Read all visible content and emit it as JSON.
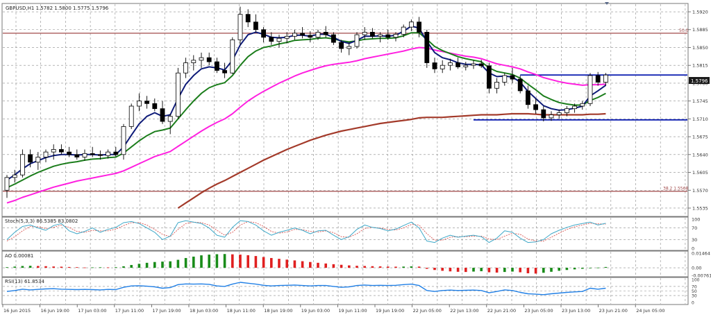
{
  "main": {
    "header": "GBPUSD,H1  1.5782 1.5800 1.5775 1.5796",
    "price_ticks": [
      "1.5920",
      "1.5885",
      "1.5850",
      "1.5815",
      "1.5780",
      "1.5745",
      "1.5710",
      "1.5675",
      "1.5640",
      "1.5605",
      "1.5570",
      "1.5535"
    ],
    "current_price": "1.5796",
    "fib_upper": "50.0",
    "fib_lower": "38.2 1.5568"
  },
  "stoch": {
    "header": "Stoch(5,3,3) 86.5385 83.0802",
    "ticks": [
      "100",
      "70",
      "30",
      "0"
    ]
  },
  "ao": {
    "header": "AO 0.00081",
    "ticks": [
      "0.01464",
      "0.00",
      "-0.00761"
    ]
  },
  "rsi": {
    "header": "RSI(13) 61.8534",
    "ticks": [
      "100",
      "70",
      "50",
      "30",
      "0"
    ]
  },
  "time_axis": [
    "16 Jun 2015",
    "16 Jun 19:00",
    "17 Jun 03:00",
    "17 Jun 11:00",
    "17 Jun 19:00",
    "18 Jun 03:00",
    "18 Jun 11:00",
    "18 Jun 19:00",
    "19 Jun 03:00",
    "19 Jun 11:00",
    "19 Jun 19:00",
    "22 Jun 05:00",
    "22 Jun 13:00",
    "22 Jun 21:00",
    "23 Jun 05:00",
    "23 Jun 13:00",
    "23 Jun 21:00",
    "24 Jun 05:00"
  ],
  "colors": {
    "grid": "#8a8a8a",
    "ma_blue": "#0d1a78",
    "ma_green": "#1b7d1b",
    "ma_magenta": "#ff1fe0",
    "ma_brown": "#a33a2a",
    "fib_line": "#a04848",
    "hline_blue": "#0a1bb0",
    "stoch_main": "#3ea8c8",
    "stoch_signal": "#d9534f",
    "ao_up": "#1a8c1a",
    "ao_down": "#e02020",
    "rsi_line": "#1f7fe6",
    "axis_text": "#333333"
  },
  "chart_data": [
    {
      "type": "candlestick",
      "title": "GBPUSD,H1",
      "ylim": [
        1.552,
        1.5935
      ],
      "ohlc": [
        [
          1.557,
          1.56,
          1.5555,
          1.5595
        ],
        [
          1.5595,
          1.561,
          1.5585,
          1.56
        ],
        [
          1.56,
          1.565,
          1.5595,
          1.564
        ],
        [
          1.564,
          1.565,
          1.5615,
          1.5625
        ],
        [
          1.5625,
          1.5645,
          1.561,
          1.5635
        ],
        [
          1.5635,
          1.565,
          1.5625,
          1.5645
        ],
        [
          1.5645,
          1.566,
          1.563,
          1.565
        ],
        [
          1.565,
          1.566,
          1.564,
          1.5645
        ],
        [
          1.5645,
          1.5655,
          1.5635,
          1.564
        ],
        [
          1.564,
          1.565,
          1.563,
          1.5635
        ],
        [
          1.5635,
          1.565,
          1.5628,
          1.5642
        ],
        [
          1.5642,
          1.5655,
          1.5635,
          1.564
        ],
        [
          1.564,
          1.5648,
          1.563,
          1.5638
        ],
        [
          1.5638,
          1.565,
          1.5632,
          1.5645
        ],
        [
          1.5645,
          1.5655,
          1.5636,
          1.564
        ],
        [
          1.564,
          1.57,
          1.563,
          1.5695
        ],
        [
          1.5695,
          1.574,
          1.569,
          1.5735
        ],
        [
          1.5735,
          1.576,
          1.5725,
          1.5745
        ],
        [
          1.5745,
          1.5755,
          1.573,
          1.574
        ],
        [
          1.574,
          1.575,
          1.5725,
          1.573
        ],
        [
          1.573,
          1.5745,
          1.57,
          1.5705
        ],
        [
          1.5705,
          1.572,
          1.568,
          1.5715
        ],
        [
          1.5715,
          1.581,
          1.571,
          1.58
        ],
        [
          1.58,
          1.583,
          1.579,
          1.582
        ],
        [
          1.582,
          1.5835,
          1.5805,
          1.5825
        ],
        [
          1.5825,
          1.584,
          1.581,
          1.583
        ],
        [
          1.583,
          1.584,
          1.5815,
          1.5822
        ],
        [
          1.5822,
          1.583,
          1.58,
          1.5805
        ],
        [
          1.5805,
          1.582,
          1.579,
          1.58
        ],
        [
          1.58,
          1.587,
          1.5798,
          1.5865
        ],
        [
          1.5865,
          1.593,
          1.5855,
          1.5915
        ],
        [
          1.5915,
          1.5925,
          1.589,
          1.59
        ],
        [
          1.59,
          1.5915,
          1.588,
          1.5885
        ],
        [
          1.5885,
          1.589,
          1.586,
          1.587
        ],
        [
          1.587,
          1.588,
          1.5855,
          1.5862
        ],
        [
          1.5862,
          1.5875,
          1.585,
          1.5868
        ],
        [
          1.5868,
          1.588,
          1.5858,
          1.5872
        ],
        [
          1.5872,
          1.5885,
          1.5865,
          1.5878
        ],
        [
          1.5878,
          1.589,
          1.5868,
          1.5874
        ],
        [
          1.5874,
          1.5882,
          1.586,
          1.587
        ],
        [
          1.587,
          1.5885,
          1.5865,
          1.588
        ],
        [
          1.588,
          1.5892,
          1.587,
          1.5875
        ],
        [
          1.5875,
          1.588,
          1.5855,
          1.586
        ],
        [
          1.586,
          1.5865,
          1.584,
          1.5848
        ],
        [
          1.5848,
          1.586,
          1.5835,
          1.5852
        ],
        [
          1.5852,
          1.588,
          1.5848,
          1.5875
        ],
        [
          1.5875,
          1.589,
          1.5865,
          1.588
        ],
        [
          1.588,
          1.5888,
          1.5868,
          1.5872
        ],
        [
          1.5872,
          1.588,
          1.586,
          1.5875
        ],
        [
          1.5875,
          1.5885,
          1.5865,
          1.587
        ],
        [
          1.587,
          1.588,
          1.5862,
          1.5876
        ],
        [
          1.5876,
          1.5895,
          1.587,
          1.589
        ],
        [
          1.589,
          1.5905,
          1.5882,
          1.59
        ],
        [
          1.59,
          1.591,
          1.587,
          1.588
        ],
        [
          1.588,
          1.5885,
          1.581,
          1.582
        ],
        [
          1.582,
          1.583,
          1.58,
          1.5808
        ],
        [
          1.5808,
          1.5825,
          1.58,
          1.5815
        ],
        [
          1.5815,
          1.5828,
          1.5805,
          1.582
        ],
        [
          1.582,
          1.583,
          1.5808,
          1.5812
        ],
        [
          1.5812,
          1.5822,
          1.5805,
          1.5815
        ],
        [
          1.5815,
          1.5825,
          1.5808,
          1.5818
        ],
        [
          1.5818,
          1.5826,
          1.581,
          1.5814
        ],
        [
          1.5814,
          1.582,
          1.576,
          1.577
        ],
        [
          1.577,
          1.579,
          1.576,
          1.5782
        ],
        [
          1.5782,
          1.58,
          1.5775,
          1.5795
        ],
        [
          1.5795,
          1.581,
          1.578,
          1.5788
        ],
        [
          1.5788,
          1.5795,
          1.576,
          1.5765
        ],
        [
          1.5765,
          1.5775,
          1.573,
          1.5738
        ],
        [
          1.5738,
          1.575,
          1.572,
          1.5728
        ],
        [
          1.5728,
          1.5735,
          1.5705,
          1.5712
        ],
        [
          1.5712,
          1.5725,
          1.5706,
          1.5718
        ],
        [
          1.5718,
          1.5728,
          1.571,
          1.5722
        ],
        [
          1.5722,
          1.5735,
          1.5715,
          1.573
        ],
        [
          1.573,
          1.574,
          1.5722,
          1.5735
        ],
        [
          1.5735,
          1.5745,
          1.5728,
          1.574
        ],
        [
          1.574,
          1.58,
          1.5735,
          1.5795
        ],
        [
          1.5795,
          1.5802,
          1.5775,
          1.5782
        ],
        [
          1.5782,
          1.58,
          1.5775,
          1.5796
        ]
      ],
      "ma_blue": [
        1.559,
        1.56,
        1.5612,
        1.5622,
        1.5628,
        1.5634,
        1.5638,
        1.564,
        1.564,
        1.5639,
        1.564,
        1.564,
        1.5639,
        1.564,
        1.564,
        1.5655,
        1.5678,
        1.57,
        1.5715,
        1.5722,
        1.5715,
        1.5718,
        1.575,
        1.5778,
        1.5795,
        1.5808,
        1.5812,
        1.581,
        1.5806,
        1.5825,
        1.5855,
        1.5875,
        1.588,
        1.5876,
        1.587,
        1.5869,
        1.587,
        1.5874,
        1.5874,
        1.5872,
        1.5876,
        1.5876,
        1.587,
        1.5862,
        1.5858,
        1.5864,
        1.5872,
        1.5872,
        1.5873,
        1.5872,
        1.5874,
        1.5882,
        1.5892,
        1.5888,
        1.5862,
        1.584,
        1.583,
        1.5826,
        1.582,
        1.5817,
        1.5817,
        1.5816,
        1.58,
        1.5793,
        1.5794,
        1.5792,
        1.5782,
        1.5764,
        1.575,
        1.5736,
        1.573,
        1.5727,
        1.5728,
        1.5731,
        1.5735,
        1.5755,
        1.5765,
        1.5776
      ],
      "ma_green": [
        1.5575,
        1.5582,
        1.559,
        1.5598,
        1.5605,
        1.5611,
        1.5617,
        1.5621,
        1.5624,
        1.5626,
        1.5629,
        1.5631,
        1.5632,
        1.5634,
        1.5635,
        1.5643,
        1.5655,
        1.5667,
        1.5677,
        1.5685,
        1.5688,
        1.5692,
        1.571,
        1.5728,
        1.5745,
        1.576,
        1.5771,
        1.5777,
        1.5781,
        1.5795,
        1.5815,
        1.5832,
        1.5843,
        1.585,
        1.5853,
        1.5857,
        1.586,
        1.5864,
        1.5865,
        1.5866,
        1.5868,
        1.5869,
        1.5867,
        1.5863,
        1.5861,
        1.5863,
        1.5866,
        1.5867,
        1.5868,
        1.5868,
        1.5869,
        1.5873,
        1.5879,
        1.5879,
        1.5866,
        1.5852,
        1.5844,
        1.5838,
        1.5832,
        1.5828,
        1.5825,
        1.5822,
        1.581,
        1.5803,
        1.58,
        1.5797,
        1.579,
        1.5778,
        1.5767,
        1.5755,
        1.5748,
        1.5742,
        1.5739,
        1.5737,
        1.5737,
        1.5746,
        1.5752,
        1.576
      ],
      "ma_magenta": [
        1.5545,
        1.555,
        1.5556,
        1.5561,
        1.5566,
        1.5571,
        1.5576,
        1.558,
        1.5584,
        1.5588,
        1.5591,
        1.5594,
        1.5597,
        1.56,
        1.5603,
        1.5608,
        1.5615,
        1.5622,
        1.5629,
        1.5636,
        1.5641,
        1.5646,
        1.5656,
        1.5666,
        1.5676,
        1.5686,
        1.5695,
        1.5703,
        1.571,
        1.572,
        1.5733,
        1.5745,
        1.5755,
        1.5764,
        1.5772,
        1.578,
        1.5787,
        1.5794,
        1.58,
        1.5805,
        1.581,
        1.5814,
        1.5817,
        1.5819,
        1.5821,
        1.5824,
        1.5828,
        1.5831,
        1.5834,
        1.5837,
        1.584,
        1.5843,
        1.5847,
        1.585,
        1.5849,
        1.5845,
        1.5842,
        1.5839,
        1.5836,
        1.5833,
        1.5831,
        1.5828,
        1.5823,
        1.5818,
        1.5815,
        1.5812,
        1.5808,
        1.5802,
        1.5797,
        1.5791,
        1.5787,
        1.5783,
        1.578,
        1.5778,
        1.5776,
        1.5777,
        1.5777,
        1.5778
      ],
      "ma_brown": [
        null,
        null,
        null,
        null,
        null,
        null,
        null,
        null,
        null,
        null,
        null,
        null,
        null,
        null,
        null,
        null,
        null,
        null,
        null,
        null,
        null,
        null,
        1.5535,
        1.5545,
        1.5555,
        1.5565,
        1.5574,
        1.5582,
        1.5589,
        1.5597,
        1.5605,
        1.5613,
        1.5621,
        1.5629,
        1.5636,
        1.5643,
        1.565,
        1.5656,
        1.5662,
        1.5668,
        1.5673,
        1.5678,
        1.5682,
        1.5686,
        1.5689,
        1.5692,
        1.5695,
        1.5698,
        1.5701,
        1.5703,
        1.5705,
        1.5707,
        1.5709,
        1.5712,
        1.5713,
        1.5713,
        1.5713,
        1.5714,
        1.5715,
        1.5716,
        1.5717,
        1.5718,
        1.5718,
        1.5718,
        1.5719,
        1.572,
        1.572,
        1.572,
        1.5719,
        1.5718,
        1.5718,
        1.5718,
        1.5718,
        1.5718,
        1.5718,
        1.5719,
        1.5719,
        1.572
      ],
      "fib_levels": [
        {
          "label": "50.0",
          "value": 1.5878
        },
        {
          "label": "38.2 1.5568",
          "value": 1.5568
        }
      ],
      "hlines": [
        {
          "value": 1.5796,
          "from_index": 66
        },
        {
          "value": 1.5708,
          "from_index": 60
        }
      ]
    },
    {
      "type": "line",
      "title": "Stoch(5,3,3)",
      "ylim": [
        0,
        100
      ],
      "levels": [
        70,
        30
      ],
      "series": [
        {
          "name": "main",
          "values": [
            30,
            55,
            75,
            80,
            70,
            62,
            78,
            85,
            60,
            50,
            58,
            70,
            55,
            65,
            72,
            88,
            92,
            85,
            70,
            55,
            30,
            42,
            88,
            95,
            90,
            85,
            70,
            45,
            38,
            72,
            95,
            92,
            80,
            60,
            45,
            55,
            62,
            70,
            62,
            50,
            60,
            62,
            45,
            30,
            40,
            65,
            80,
            72,
            68,
            60,
            66,
            78,
            90,
            70,
            25,
            20,
            35,
            45,
            38,
            42,
            45,
            40,
            20,
            35,
            60,
            55,
            35,
            20,
            22,
            30,
            50,
            62,
            72,
            80,
            85,
            90,
            80,
            86
          ]
        },
        {
          "name": "signal",
          "values": [
            25,
            40,
            60,
            75,
            74,
            68,
            72,
            80,
            72,
            58,
            55,
            62,
            60,
            60,
            66,
            78,
            88,
            88,
            80,
            65,
            48,
            40,
            65,
            85,
            90,
            88,
            80,
            62,
            45,
            55,
            80,
            92,
            88,
            75,
            58,
            52,
            56,
            65,
            64,
            58,
            56,
            60,
            54,
            40,
            38,
            50,
            68,
            72,
            70,
            65,
            63,
            70,
            82,
            80,
            50,
            28,
            28,
            38,
            40,
            40,
            42,
            42,
            32,
            30,
            42,
            52,
            48,
            32,
            25,
            25,
            38,
            52,
            65,
            74,
            80,
            86,
            84,
            83
          ]
        }
      ]
    },
    {
      "type": "bar",
      "title": "AO",
      "ylim": [
        -0.00761,
        0.01464
      ],
      "values": [
        0.0006,
        0.0012,
        0.0018,
        0.002,
        0.0018,
        0.0016,
        0.0013,
        0.0011,
        0.0008,
        0.0006,
        0.0003,
        0.0004,
        0.0005,
        0.0004,
        0.0006,
        0.0015,
        0.0028,
        0.004,
        0.005,
        0.0058,
        0.0062,
        0.0065,
        0.008,
        0.0098,
        0.0112,
        0.0125,
        0.0132,
        0.0136,
        0.0138,
        0.0135,
        0.0132,
        0.0126,
        0.0118,
        0.0108,
        0.0098,
        0.009,
        0.0082,
        0.0074,
        0.0066,
        0.0058,
        0.005,
        0.0043,
        0.0036,
        0.003,
        0.0024,
        0.002,
        0.0018,
        0.0016,
        0.0014,
        0.0012,
        0.0011,
        0.0012,
        0.0014,
        0.0012,
        -0.001,
        -0.0022,
        -0.003,
        -0.0036,
        -0.004,
        -0.0042,
        -0.0038,
        -0.0034,
        -0.0045,
        -0.0048,
        -0.0042,
        -0.0038,
        -0.0045,
        -0.0055,
        -0.0058,
        -0.005,
        -0.004,
        -0.003,
        -0.0022,
        -0.0016,
        -0.001,
        -0.0004,
        0.0002,
        0.0008
      ]
    },
    {
      "type": "line",
      "title": "RSI(13)",
      "ylim": [
        0,
        100
      ],
      "levels": [
        70,
        50,
        30
      ],
      "series": [
        {
          "name": "RSI",
          "values": [
            48,
            52,
            58,
            55,
            57,
            59,
            60,
            58,
            57,
            56,
            57,
            56,
            55,
            57,
            56,
            66,
            72,
            73,
            71,
            68,
            62,
            65,
            78,
            81,
            80,
            81,
            79,
            72,
            70,
            80,
            88,
            84,
            80,
            75,
            72,
            74,
            75,
            76,
            74,
            72,
            74,
            74,
            70,
            66,
            68,
            74,
            76,
            74,
            75,
            74,
            75,
            78,
            80,
            74,
            52,
            48,
            52,
            54,
            52,
            53,
            54,
            52,
            42,
            48,
            55,
            52,
            44,
            38,
            36,
            34,
            38,
            41,
            44,
            46,
            48,
            62,
            58,
            62
          ]
        }
      ]
    }
  ]
}
